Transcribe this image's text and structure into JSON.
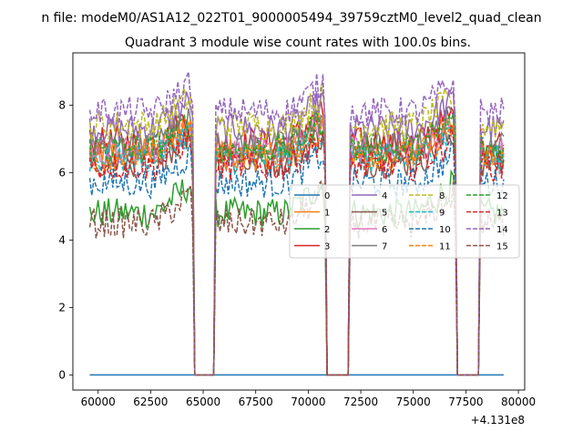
{
  "chart_data": {
    "type": "line",
    "suptitle": "n file: modeM0/AS1A12_022T01_9000005494_39759cztM0_level2_quad_clean",
    "title": "Quadrant 3 module wise count rates with 100.0s bins.",
    "xlabel": "",
    "ylabel": "",
    "x_offset_label": "+4.131e8",
    "xlim": [
      58800,
      80300
    ],
    "ylim": [
      -0.45,
      9.55
    ],
    "xticks": [
      60000,
      62500,
      65000,
      67500,
      70000,
      72500,
      75000,
      77500,
      80000
    ],
    "xtick_labels": [
      "60000",
      "62500",
      "65000",
      "67500",
      "70000",
      "72500",
      "75000",
      "77500",
      "80000"
    ],
    "yticks": [
      0,
      2,
      4,
      6,
      8
    ],
    "ytick_labels": [
      "0",
      "2",
      "4",
      "6",
      "8"
    ],
    "x_start": 59600,
    "x_end": 79300,
    "bin_size": 100,
    "gaps": [
      [
        64500,
        65600
      ],
      [
        70800,
        72000
      ],
      [
        77000,
        78200
      ]
    ],
    "series_levels": [
      0,
      6.6,
      4.8,
      6.9,
      7.3,
      6.3,
      6.6,
      6.8,
      7.4,
      6.4,
      5.7,
      6.5,
      6.7,
      6.2,
      7.8,
      4.5
    ],
    "legend": {
      "placement": "center-right",
      "columns": 4,
      "entries": [
        {
          "label": "0",
          "color": "#1f77b4",
          "style": "solid"
        },
        {
          "label": "1",
          "color": "#ff7f0e",
          "style": "solid"
        },
        {
          "label": "2",
          "color": "#2ca02c",
          "style": "solid"
        },
        {
          "label": "3",
          "color": "#d62728",
          "style": "solid"
        },
        {
          "label": "4",
          "color": "#9467bd",
          "style": "solid"
        },
        {
          "label": "5",
          "color": "#8c564b",
          "style": "solid"
        },
        {
          "label": "6",
          "color": "#e377c2",
          "style": "solid"
        },
        {
          "label": "7",
          "color": "#7f7f7f",
          "style": "solid"
        },
        {
          "label": "8",
          "color": "#bcbd22",
          "style": "dashed"
        },
        {
          "label": "9",
          "color": "#17becf",
          "style": "dashed"
        },
        {
          "label": "10",
          "color": "#1f77b4",
          "style": "dashed"
        },
        {
          "label": "11",
          "color": "#ff7f0e",
          "style": "dashed"
        },
        {
          "label": "12",
          "color": "#2ca02c",
          "style": "dashed"
        },
        {
          "label": "13",
          "color": "#d62728",
          "style": "dashed"
        },
        {
          "label": "14",
          "color": "#9467bd",
          "style": "dashed"
        },
        {
          "label": "15",
          "color": "#8c564b",
          "style": "dashed"
        }
      ]
    }
  }
}
